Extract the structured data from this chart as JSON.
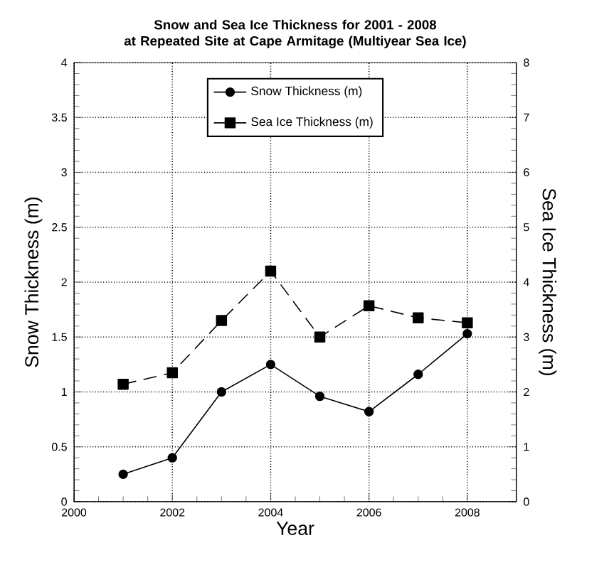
{
  "chart_data": {
    "type": "line",
    "title": "Snow and Sea Ice Thickness for 2001 - 2008\nat Repeated Site at Cape Armitage (Multiyear Sea Ice)",
    "xlabel": "Year",
    "ylabel": "Snow Thickness (m)",
    "y2label": "Sea Ice Thickness (m)",
    "x": [
      2001,
      2002,
      2003,
      2004,
      2005,
      2006,
      2007,
      2008
    ],
    "series": [
      {
        "name": "Snow Thickness (m)",
        "color": "#000000",
        "marker": "circle",
        "line_style": "solid",
        "values": [
          0.25,
          0.4,
          1.0,
          1.25,
          0.96,
          0.82,
          1.16,
          1.53
        ]
      },
      {
        "name": "Sea Ice Thickness (m)",
        "color": "#000000",
        "marker": "square",
        "line_style": "dashed",
        "axis": "y2",
        "values": [
          2.14,
          2.35,
          3.3,
          4.2,
          3.0,
          3.57,
          3.35,
          3.26
        ]
      }
    ],
    "xlim": [
      2000,
      2009
    ],
    "xticks": [
      2000,
      2002,
      2004,
      2006,
      2008
    ],
    "ylim": [
      0,
      4
    ],
    "yticks": [
      0,
      0.5,
      1,
      1.5,
      2,
      2.5,
      3,
      3.5,
      4
    ],
    "y2lim": [
      0,
      8
    ],
    "y2ticks": [
      0,
      1,
      2,
      3,
      4,
      5,
      6,
      7,
      8
    ],
    "grid": true,
    "legend": "top"
  }
}
